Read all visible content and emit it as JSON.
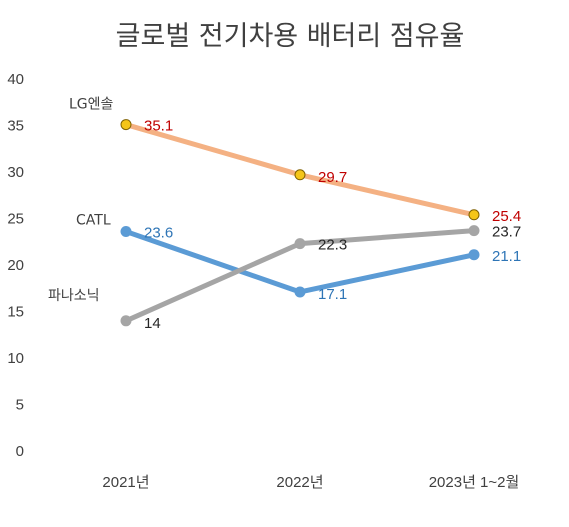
{
  "chart_data": {
    "type": "line",
    "title": "글로벌 전기차용 배터리 점유율",
    "categories": [
      "2021년",
      "2022년",
      "2023년 1~2월"
    ],
    "ylim": [
      0,
      40
    ],
    "yticks": [
      0,
      5,
      10,
      15,
      20,
      25,
      30,
      35,
      40
    ],
    "grid": false,
    "legend": "none",
    "series": [
      {
        "name": "LG엔솔",
        "values": [
          35.1,
          29.7,
          25.4
        ],
        "line_color": "#F4B183",
        "marker_color": "#F5C518",
        "label_color": "#C00000"
      },
      {
        "name": "CATL",
        "values": [
          23.6,
          17.1,
          21.1
        ],
        "line_color": "#5B9BD5",
        "marker_color": "#5B9BD5",
        "label_color": "#2E75B6"
      },
      {
        "name": "파나소닉",
        "values": [
          14,
          22.3,
          23.7
        ],
        "line_color": "#A5A5A5",
        "marker_color": "#A5A5A5",
        "label_color": "#262626"
      }
    ]
  }
}
